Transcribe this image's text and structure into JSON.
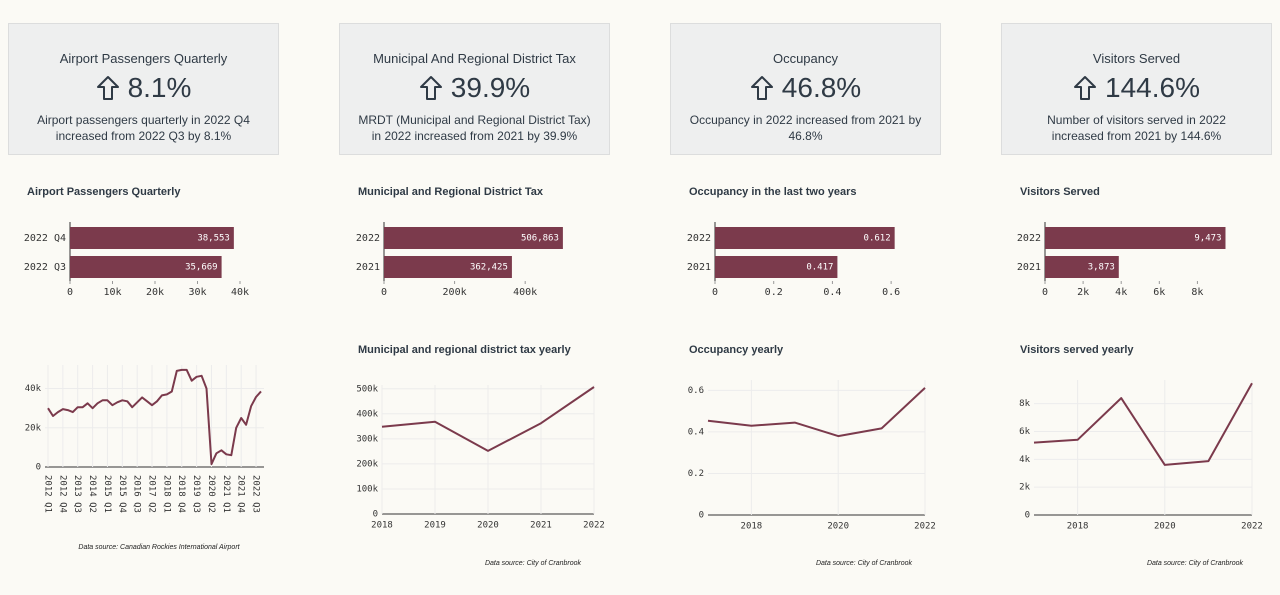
{
  "cards": [
    {
      "title": "Airport Passengers Quarterly",
      "value": "8.1%",
      "text": "Airport passengers quarterly in 2022 Q4 increased from 2022 Q3 by 8.1%"
    },
    {
      "title": "Municipal And Regional District Tax",
      "value": "39.9%",
      "text": "MRDT (Municipal and Regional District Tax) in 2022 increased from 2021 by 39.9%"
    },
    {
      "title": "Occupancy",
      "value": "46.8%",
      "text": "Occupancy in 2022 increased from 2021 by 46.8%"
    },
    {
      "title": "Visitors Served",
      "value": "144.6%",
      "text": "Number of visitors served in 2022 increased from 2021 by 144.6%"
    }
  ],
  "chart_data": [
    {
      "type": "barh",
      "title": "Airport Passengers Quarterly",
      "categories": [
        "2022 Q4",
        "2022 Q3"
      ],
      "values": [
        38553,
        35669
      ],
      "value_labels": [
        "38,553",
        "35,669"
      ],
      "color": "#7b3a4c",
      "xlim": [
        0,
        40000
      ],
      "xticks": [
        0,
        {
          "value": 10000,
          "label": "10k"
        },
        {
          "value": 20000,
          "label": "20k"
        },
        {
          "value": 30000,
          "label": "30k"
        },
        {
          "value": 40000,
          "label": "40k"
        }
      ]
    },
    {
      "type": "barh",
      "title": "Municipal and Regional District Tax",
      "categories": [
        "2022",
        "2021"
      ],
      "values": [
        506863,
        362425
      ],
      "value_labels": [
        "506,863",
        "362,425"
      ],
      "color": "#7b3a4c",
      "xlim": [
        0,
        510000
      ],
      "xticks": [
        0,
        {
          "value": 200000,
          "label": "200k"
        },
        {
          "value": 400000,
          "label": "400k"
        }
      ]
    },
    {
      "type": "barh",
      "title": "Occupancy in the last two years",
      "categories": [
        "2022",
        "2021"
      ],
      "values": [
        0.612,
        0.417
      ],
      "color": "#7b3a4c",
      "xlim": [
        0,
        0.62
      ],
      "xticks": [
        0,
        0.2,
        0.4,
        0.6
      ]
    },
    {
      "type": "barh",
      "title": "Visitors Served",
      "categories": [
        "2022",
        "2021"
      ],
      "values": [
        9473,
        3873
      ],
      "value_labels": [
        "9,473",
        "3,873"
      ],
      "color": "#7b3a4c",
      "xlim": [
        0,
        9500
      ],
      "xticks": [
        0,
        {
          "value": 2000,
          "label": "2k"
        },
        {
          "value": 4000,
          "label": "4k"
        },
        {
          "value": 6000,
          "label": "6k"
        },
        {
          "value": 8000,
          "label": "8k"
        }
      ]
    },
    {
      "type": "line",
      "color": "#7b3a4c",
      "grid": true,
      "source": "Data source: Canadian Rockies International Airport",
      "categories": [
        "2012 Q1",
        null,
        null,
        "2012 Q4",
        null,
        null,
        "2013 Q3",
        null,
        null,
        "2014 Q2",
        null,
        null,
        "2015 Q1",
        null,
        null,
        "2015 Q4",
        null,
        null,
        "2016 Q3",
        null,
        null,
        "2017 Q2",
        null,
        null,
        "2018 Q1",
        null,
        null,
        "2018 Q4",
        null,
        null,
        "2019 Q3",
        null,
        null,
        "2020 Q2",
        null,
        null,
        "2021 Q1",
        null,
        null,
        "2021 Q4",
        null,
        null,
        "2022 Q3",
        null
      ],
      "values": [
        30000,
        26000,
        28000,
        29500,
        29000,
        28000,
        30500,
        30500,
        32500,
        30000,
        32500,
        34000,
        34000,
        31500,
        33000,
        34000,
        33500,
        30500,
        33000,
        35500,
        33500,
        31500,
        33500,
        36500,
        37000,
        38500,
        49000,
        49500,
        49500,
        44000,
        46000,
        46500,
        40000,
        1500,
        7000,
        8500,
        6500,
        6000,
        20000,
        25000,
        21500,
        31000,
        35669,
        38553
      ],
      "ylim": [
        0,
        52000
      ],
      "yticks": [
        0,
        {
          "value": 20000,
          "label": "20k"
        },
        {
          "value": 40000,
          "label": "40k"
        }
      ]
    },
    {
      "type": "line",
      "title": "Municipal and regional district tax yearly",
      "color": "#7b3a4c",
      "grid": true,
      "source": "Data source: City of Cranbrook",
      "x": [
        2018,
        2019,
        2020,
        2021,
        2022
      ],
      "values": [
        348000,
        368000,
        252000,
        362425,
        506863
      ],
      "xlim": [
        2018,
        2022
      ],
      "xticks": [
        2018,
        2019,
        2020,
        2021,
        2022
      ],
      "ylim": [
        0,
        515000
      ],
      "yticks": [
        0,
        {
          "value": 100000,
          "label": "100k"
        },
        {
          "value": 200000,
          "label": "200k"
        },
        {
          "value": 300000,
          "label": "300k"
        },
        {
          "value": 400000,
          "label": "400k"
        },
        {
          "value": 500000,
          "label": "500k"
        }
      ]
    },
    {
      "type": "line",
      "title": "Occupancy yearly",
      "color": "#7b3a4c",
      "grid": true,
      "source": "Data source: City of Cranbrook",
      "x": [
        2017,
        2018,
        2019,
        2020,
        2021,
        2022
      ],
      "values": [
        0.454,
        0.43,
        0.445,
        0.38,
        0.417,
        0.612
      ],
      "xlim": [
        2017,
        2022
      ],
      "xticks": [
        2018,
        2020,
        2022
      ],
      "ylim": [
        0,
        0.65
      ],
      "yticks": [
        0,
        0.2,
        0.4,
        0.6
      ]
    },
    {
      "type": "line",
      "title": "Visitors served yearly",
      "color": "#7b3a4c",
      "grid": true,
      "source": "Data source: City of Cranbrook",
      "x": [
        2017,
        2018,
        2019,
        2020,
        2021,
        2022
      ],
      "values": [
        5200,
        5400,
        8400,
        3600,
        3873,
        9473
      ],
      "xlim": [
        2017,
        2022
      ],
      "xticks": [
        2018,
        2020,
        2022
      ],
      "ylim": [
        0,
        9700
      ],
      "yticks": [
        0,
        {
          "value": 2000,
          "label": "2k"
        },
        {
          "value": 4000,
          "label": "4k"
        },
        {
          "value": 6000,
          "label": "6k"
        },
        {
          "value": 8000,
          "label": "8k"
        }
      ]
    }
  ]
}
